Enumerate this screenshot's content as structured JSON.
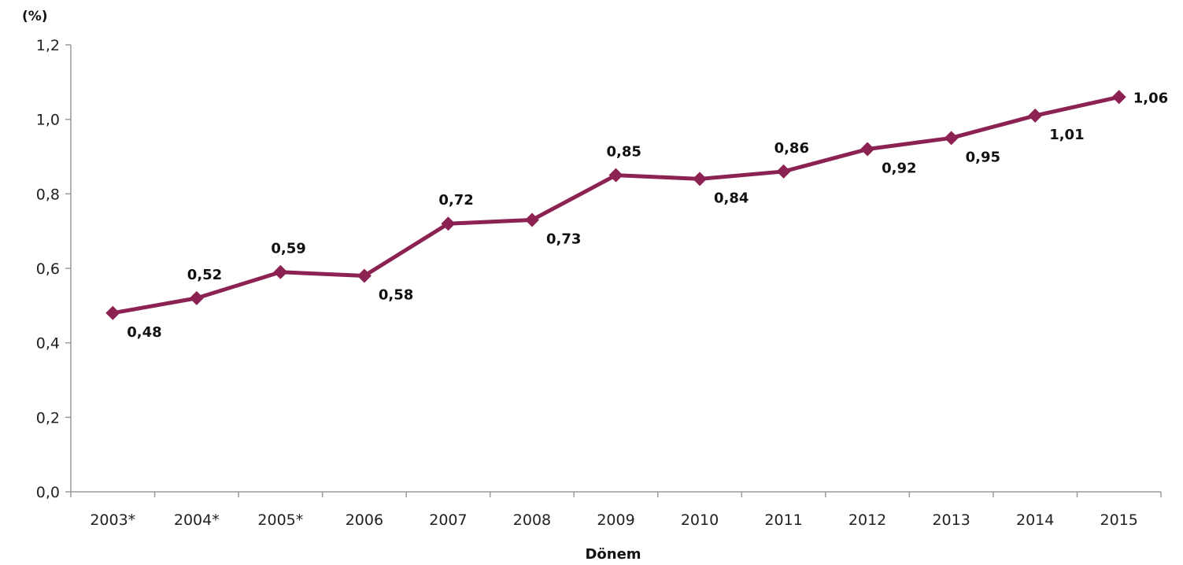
{
  "chart_data": {
    "type": "line",
    "ylabel": "(%)",
    "xlabel": "Dönem",
    "categories": [
      "2003*",
      "2004*",
      "2005*",
      "2006",
      "2007",
      "2008",
      "2009",
      "2010",
      "2011",
      "2012",
      "2013",
      "2014",
      "2015"
    ],
    "series": [
      {
        "values": [
          0.48,
          0.52,
          0.59,
          0.58,
          0.72,
          0.73,
          0.85,
          0.84,
          0.86,
          0.92,
          0.95,
          1.01,
          1.06
        ],
        "data_labels": [
          "0,48",
          "0,52",
          "0,59",
          "0,58",
          "0,72",
          "0,73",
          "0,85",
          "0,84",
          "0,86",
          "0,92",
          "0,95",
          "1,01",
          "1,06"
        ],
        "color": "#8b2252"
      }
    ],
    "ylim": [
      0,
      1.2
    ],
    "yticks": [
      0,
      0.2,
      0.4,
      0.6,
      0.8,
      1.0,
      1.2
    ],
    "ytick_labels": [
      "0,0",
      "0,2",
      "0,4",
      "0,6",
      "0,8",
      "1,0",
      "1,2"
    ],
    "grid": false,
    "legend": "none"
  }
}
